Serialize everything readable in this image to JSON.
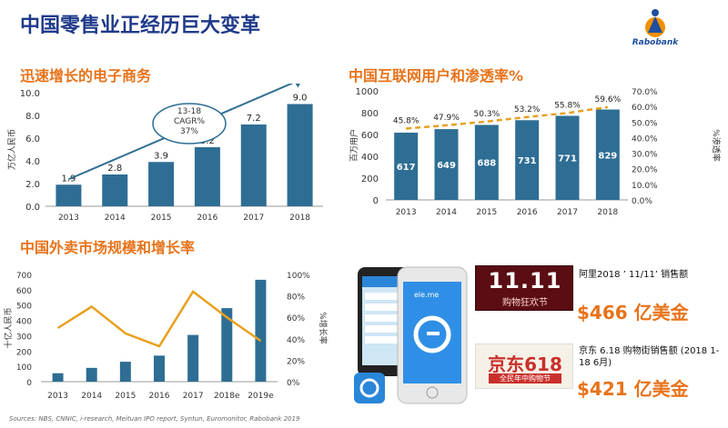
{
  "title": "中国零售业正经历巨大变革",
  "logo_text": "Rabobank",
  "source": "Sources: NBS, CNNIC, i-research, Meituan IPO report, Syntun, Euromonitor, Rabobank 2019",
  "colors": {
    "bar": "#2e6e94",
    "accent": "#e8a020",
    "title": "#1f3a8a",
    "section": "#e8731a",
    "arrow": "#2e6e94"
  },
  "promos": [
    {
      "badge_text": "11.11",
      "badge_sub": "购物狂欢节",
      "caption": "阿里2018 ’ 11/11’  销售额",
      "value": "$466 亿美金"
    },
    {
      "badge_text": "京东618",
      "badge_sub": "全民年中购物节",
      "caption": "京东 6.18 购物街销售额 (2018 1-18 6月)",
      "value": "$421 亿美金"
    }
  ],
  "phone": {
    "brand": "ele.me"
  },
  "chart_data": [
    {
      "type": "bar",
      "title": "迅速增长的电子商务",
      "ylabel": "万亿人民币",
      "categories": [
        "2013",
        "2014",
        "2015",
        "2016",
        "2017",
        "2018"
      ],
      "values": [
        1.9,
        2.8,
        3.9,
        5.2,
        7.2,
        9.0
      ],
      "value_labels": [
        "1.9",
        "2.8",
        "3.9",
        "5.2",
        "7.2",
        "9.0"
      ],
      "yticks": [
        "0.0",
        "2.0",
        "4.0",
        "6.0",
        "8.0",
        "10.0"
      ],
      "ylim": [
        0,
        10
      ],
      "annotation": "13-18 CAGR% 37%",
      "annotation_lines": [
        "13-18",
        "CAGR%",
        "37%"
      ]
    },
    {
      "type": "bar",
      "title": "中国互联网用户和渗透率%",
      "ylabel": "百万用户",
      "y2label": "%渗透率",
      "categories": [
        "2013",
        "2014",
        "2015",
        "2016",
        "2017",
        "2018"
      ],
      "values": [
        617,
        649,
        688,
        731,
        771,
        829
      ],
      "value_labels": [
        "617",
        "649",
        "688",
        "731",
        "771",
        "829"
      ],
      "line_values": [
        45.8,
        47.9,
        50.3,
        53.2,
        55.8,
        59.6
      ],
      "line_labels": [
        "45.8%",
        "47.9%",
        "50.3%",
        "53.2%",
        "55.8%",
        "59.6%"
      ],
      "yticks": [
        "0",
        "200",
        "400",
        "600",
        "800",
        "1000"
      ],
      "ylim": [
        0,
        1000
      ],
      "y2ticks": [
        "0.0%",
        "10.0%",
        "20.0%",
        "30.0%",
        "40.0%",
        "50.0%",
        "60.0%",
        "70.0%"
      ],
      "y2lim": [
        0,
        70
      ]
    },
    {
      "type": "bar",
      "title": "中国外卖市场规模和增长率",
      "ylabel": "十亿人民币",
      "y2label": "%增长率",
      "categories": [
        "2013",
        "2014",
        "2015",
        "2016",
        "2017",
        "2018e",
        "2019e"
      ],
      "values": [
        55,
        90,
        130,
        170,
        305,
        480,
        665
      ],
      "line_values": [
        50,
        70,
        45,
        33,
        84,
        60,
        38
      ],
      "yticks": [
        "0",
        "100",
        "200",
        "300",
        "400",
        "500",
        "600",
        "700"
      ],
      "ylim": [
        0,
        700
      ],
      "y2ticks": [
        "0%",
        "20%",
        "40%",
        "60%",
        "80%",
        "100%"
      ],
      "y2lim": [
        0,
        100
      ]
    }
  ]
}
